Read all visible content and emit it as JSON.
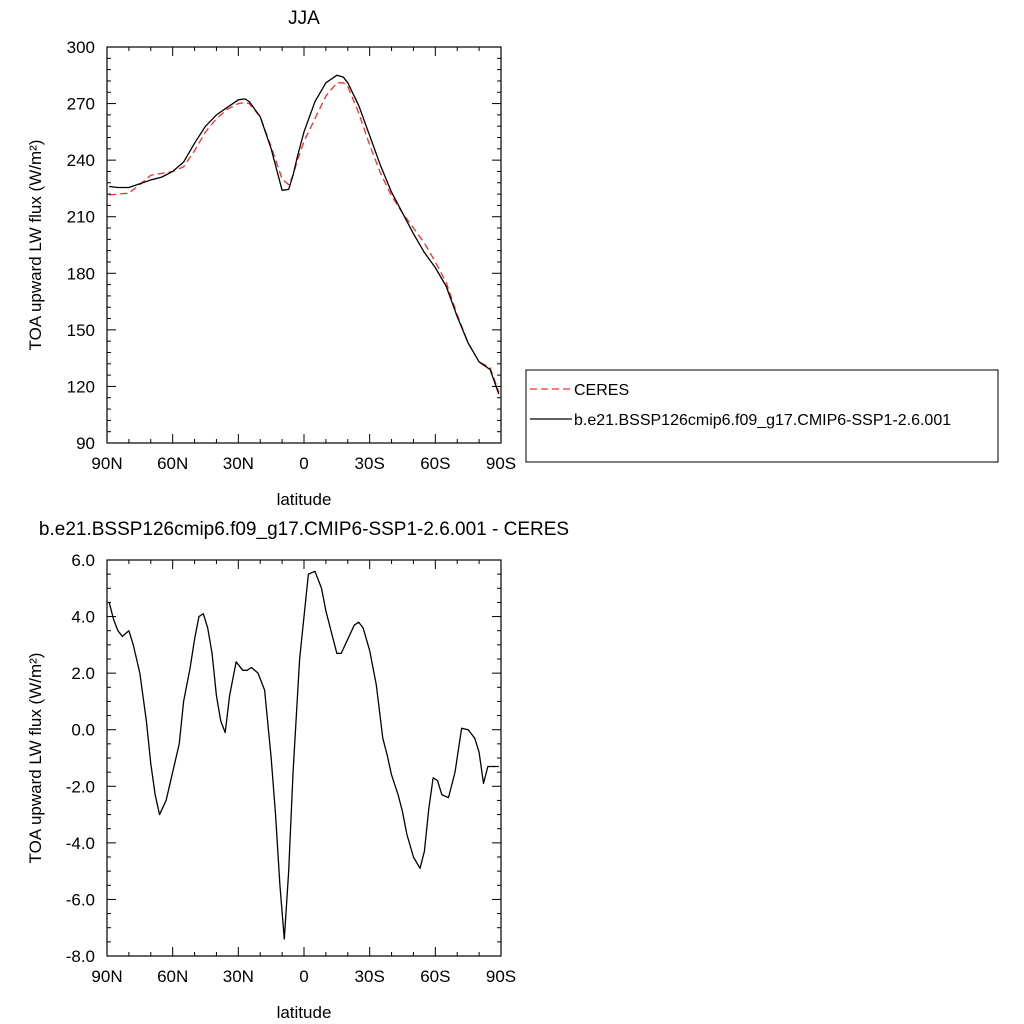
{
  "chart_data": [
    {
      "type": "line",
      "title": "JJA",
      "xlabel": "latitude",
      "ylabel": "TOA upward LW flux (W/m²)",
      "xlim": [
        -90,
        90
      ],
      "ylim": [
        90,
        300
      ],
      "x_ticks": [
        -90,
        -60,
        -30,
        0,
        30,
        60,
        90
      ],
      "x_tick_labels": [
        "90N",
        "60N",
        "30N",
        "0",
        "30S",
        "60S",
        "90S"
      ],
      "y_ticks": [
        90,
        120,
        150,
        180,
        210,
        240,
        270,
        300
      ],
      "y_tick_labels": [
        "90",
        "120",
        "150",
        "180",
        "210",
        "240",
        "270",
        "300"
      ],
      "legend": {
        "placement": "right",
        "entries": [
          "CERES",
          "b.e21.BSSP126cmip6.f09_g17.CMIP6-SSP1-2.6.001"
        ]
      },
      "series": [
        {
          "name": "CERES",
          "color": "#ff2a2a",
          "dashed": true,
          "x": [
            -89,
            -85,
            -80,
            -75,
            -70,
            -65,
            -60,
            -55,
            -50,
            -45,
            -40,
            -35,
            -30,
            -27,
            -25,
            -20,
            -15,
            -10,
            -7,
            -5,
            -3,
            0,
            5,
            10,
            15,
            18,
            20,
            25,
            30,
            35,
            40,
            45,
            50,
            55,
            60,
            65,
            70,
            75,
            80,
            85,
            89
          ],
          "values": [
            221.5,
            222,
            222.5,
            227,
            232,
            233,
            234,
            236.5,
            245,
            255,
            262,
            267,
            270,
            270.5,
            270,
            263,
            247,
            230,
            227,
            232,
            240,
            250,
            262,
            274,
            281,
            281,
            279,
            265,
            248,
            233,
            221,
            212,
            204,
            196,
            186,
            175,
            158,
            143,
            133,
            130,
            117
          ]
        },
        {
          "name": "b.e21.BSSP126cmip6.f09_g17.CMIP6-SSP1-2.6.001",
          "color": "#000000",
          "dashed": false,
          "x": [
            -89,
            -85,
            -80,
            -75,
            -70,
            -65,
            -60,
            -55,
            -50,
            -45,
            -40,
            -35,
            -30,
            -27,
            -25,
            -20,
            -15,
            -10,
            -7,
            -5,
            -3,
            0,
            5,
            10,
            15,
            18,
            20,
            25,
            30,
            35,
            40,
            45,
            50,
            55,
            60,
            65,
            70,
            75,
            80,
            85,
            89
          ],
          "values": [
            226,
            225.5,
            225.5,
            227.5,
            229.5,
            231,
            234,
            239,
            249,
            258,
            264,
            268,
            272,
            272.5,
            271,
            263,
            246,
            224,
            224.5,
            232,
            242,
            255,
            271,
            281,
            285,
            284,
            281,
            269,
            253,
            237,
            223,
            212,
            201,
            191,
            183,
            173,
            157,
            143,
            133,
            129,
            116
          ]
        }
      ]
    },
    {
      "type": "line",
      "title": "b.e21.BSSP126cmip6.f09_g17.CMIP6-SSP1-2.6.001 - CERES",
      "xlabel": "latitude",
      "ylabel": "TOA upward LW flux (W/m²)",
      "xlim": [
        -90,
        90
      ],
      "ylim": [
        -8,
        6
      ],
      "x_ticks": [
        -90,
        -60,
        -30,
        0,
        30,
        60,
        90
      ],
      "x_tick_labels": [
        "90N",
        "60N",
        "30N",
        "0",
        "30S",
        "60S",
        "90S"
      ],
      "y_ticks": [
        -8,
        -6,
        -4,
        -2,
        0,
        2,
        4,
        6
      ],
      "y_tick_labels": [
        "-8.0",
        "-6.0",
        "-4.0",
        "-2.0",
        "0.0",
        "2.0",
        "4.0",
        "6.0"
      ],
      "series": [
        {
          "color": "#000000",
          "dashed": false,
          "x": [
            -89,
            -87,
            -85,
            -83,
            -80,
            -78,
            -75,
            -72,
            -70,
            -68,
            -66,
            -63,
            -60,
            -57,
            -55,
            -52,
            -50,
            -48,
            -46,
            -44,
            -42,
            -40,
            -38,
            -36,
            -34,
            -31,
            -28,
            -26,
            -24,
            -21,
            -18,
            -15,
            -13,
            -11,
            -9,
            -7,
            -5,
            -2,
            0,
            2,
            5,
            8,
            10,
            13,
            15,
            17,
            20,
            23,
            25,
            27,
            30,
            33,
            36,
            38,
            40,
            43,
            45,
            47,
            50,
            53,
            55,
            57,
            59,
            61,
            63,
            66,
            69,
            72,
            75,
            78,
            80,
            82,
            84,
            86,
            88,
            89
          ],
          "values": [
            4.5,
            3.9,
            3.5,
            3.3,
            3.5,
            3.0,
            2.0,
            0.3,
            -1.2,
            -2.3,
            -3.0,
            -2.5,
            -1.5,
            -0.5,
            1.0,
            2.2,
            3.2,
            4.0,
            4.1,
            3.6,
            2.7,
            1.2,
            0.3,
            -0.1,
            1.2,
            2.4,
            2.1,
            2.1,
            2.2,
            2.0,
            1.4,
            -1.0,
            -3.0,
            -5.5,
            -7.4,
            -5.0,
            -1.5,
            2.5,
            4.0,
            5.5,
            5.6,
            5.0,
            4.2,
            3.3,
            2.7,
            2.7,
            3.2,
            3.7,
            3.8,
            3.6,
            2.8,
            1.6,
            -0.3,
            -0.9,
            -1.6,
            -2.3,
            -2.9,
            -3.7,
            -4.5,
            -4.9,
            -4.3,
            -2.8,
            -1.7,
            -1.8,
            -2.3,
            -2.4,
            -1.5,
            0.05,
            0.0,
            -0.3,
            -0.8,
            -1.9,
            -1.3,
            -1.3,
            -1.3,
            -1.3
          ]
        }
      ]
    }
  ]
}
